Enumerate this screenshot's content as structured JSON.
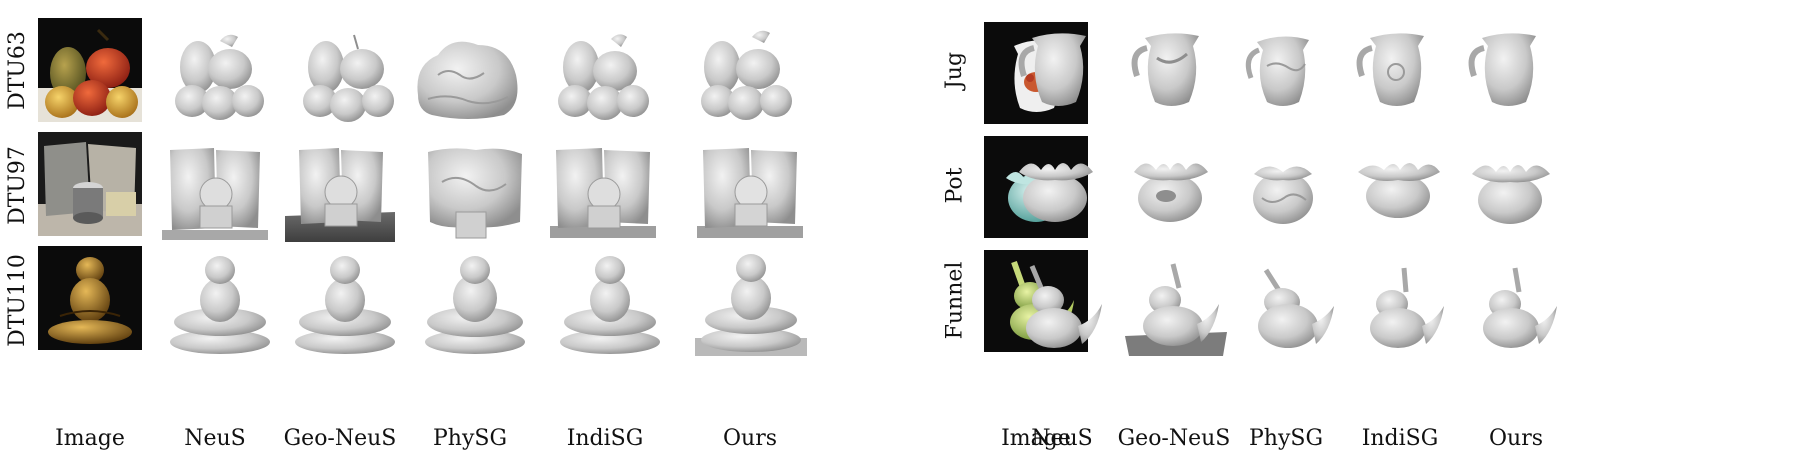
{
  "left_panel": {
    "rows": [
      "DTU63",
      "DTU97",
      "DTU110"
    ],
    "columns": [
      "Image",
      "NeuS",
      "Geo-NeuS",
      "PhySG",
      "IndiSG",
      "Ours"
    ]
  },
  "right_panel": {
    "rows": [
      "Jug",
      "Pot",
      "Funnel"
    ],
    "columns": [
      "Image",
      "NeuS",
      "Geo-NeuS",
      "PhySG",
      "IndiSG",
      "Ours"
    ]
  },
  "colors": {
    "mesh_gray": "#c9c9c9",
    "mesh_shadow": "#8e8e8e",
    "photo_background": "#0b0b0b"
  }
}
